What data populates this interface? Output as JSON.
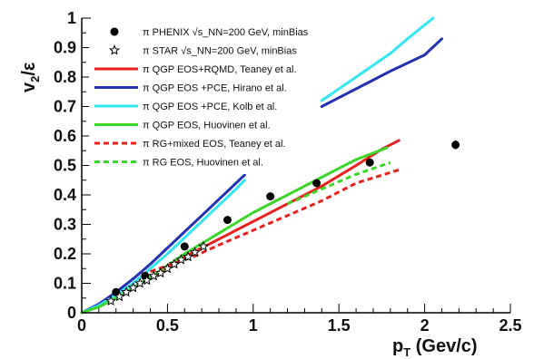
{
  "chart_data": {
    "type": "line",
    "xlabel_main": "p",
    "xlabel_sub": "T",
    "xlabel_rest": " (Gev/c)",
    "ylabel_main": "v",
    "ylabel_sub": "2",
    "ylabel_rest": "/ε",
    "xlim": [
      0,
      2.5
    ],
    "ylim": [
      0,
      1
    ],
    "xticks": [
      "0",
      "0.5",
      "1",
      "1.5",
      "2",
      "2.5"
    ],
    "yticks": [
      "0",
      "0.1",
      "0.2",
      "0.3",
      "0.4",
      "0.5",
      "0.6",
      "0.7",
      "0.8",
      "0.9",
      "1"
    ],
    "x_tick_values": [
      0,
      0.5,
      1,
      1.5,
      2,
      2.5
    ],
    "y_tick_values": [
      0,
      0.1,
      0.2,
      0.3,
      0.4,
      0.5,
      0.6,
      0.7,
      0.8,
      0.9,
      1
    ],
    "legend": [
      {
        "label": "π PHENIX √s_NN=200 GeV, minBias",
        "kind": "marker-circle",
        "color": "#000000"
      },
      {
        "label": "π STAR √s_NN=200 GeV, minBias",
        "kind": "marker-star",
        "color": "#000000"
      },
      {
        "label": "π  QGP EOS+RQMD, Teaney et al.",
        "kind": "line",
        "color": "#e8211e"
      },
      {
        "label": "π QGP EOS +PCE, Hirano et al.",
        "kind": "line",
        "color": "#2232b0"
      },
      {
        "label": "π QGP EOS +PCE, Kolb et al.",
        "kind": "line",
        "color": "#33e6f2"
      },
      {
        "label": "π QGP EOS, Huovinen et al.",
        "kind": "line",
        "color": "#3cd62a"
      },
      {
        "label": "π RG+mixed EOS, Teaney et al.",
        "kind": "dashed",
        "color": "#e8211e"
      },
      {
        "label": "π RG EOS, Huovinen et al.",
        "kind": "dashed",
        "color": "#3cd62a"
      }
    ],
    "series": [
      {
        "name": "π PHENIX √s_NN=200 GeV, minBias",
        "kind": "points-circle",
        "color": "#000000",
        "x": [
          0.2,
          0.37,
          0.6,
          0.85,
          1.1,
          1.37,
          1.68,
          2.18
        ],
        "y": [
          0.07,
          0.125,
          0.225,
          0.315,
          0.395,
          0.44,
          0.51,
          0.57
        ],
        "yerr": [
          0.005,
          0.005,
          0.005,
          0.006,
          0.007,
          0.008,
          0.01,
          0.015
        ]
      },
      {
        "name": "π STAR √s_NN=200 GeV, minBias",
        "kind": "points-star",
        "color": "#000000",
        "x": [
          0.17,
          0.22,
          0.26,
          0.3,
          0.34,
          0.38,
          0.42,
          0.46,
          0.5,
          0.54,
          0.58,
          0.62,
          0.66,
          0.71
        ],
        "y": [
          0.04,
          0.055,
          0.07,
          0.085,
          0.1,
          0.11,
          0.125,
          0.135,
          0.15,
          0.165,
          0.18,
          0.19,
          0.205,
          0.225
        ]
      },
      {
        "name": "π  QGP EOS+RQMD, Teaney et al.",
        "kind": "line",
        "color": "#e8211e",
        "x": [
          0,
          0.1,
          0.2,
          0.3,
          0.4,
          0.5,
          0.6,
          0.7,
          0.8,
          0.9,
          1.0,
          1.2,
          1.4,
          1.6,
          1.75,
          1.85
        ],
        "y": [
          0,
          0.02,
          0.05,
          0.085,
          0.12,
          0.155,
          0.19,
          0.22,
          0.25,
          0.28,
          0.31,
          0.37,
          0.43,
          0.5,
          0.555,
          0.585
        ]
      },
      {
        "name": "π QGP EOS +PCE, Hirano et al.",
        "kind": "line",
        "color": "#2232b0",
        "x": [
          0,
          0.1,
          0.2,
          0.3,
          0.4,
          0.5,
          0.6,
          0.7,
          0.8,
          0.9,
          0.95
        ],
        "y": [
          0,
          0.03,
          0.07,
          0.115,
          0.165,
          0.22,
          0.275,
          0.33,
          0.385,
          0.44,
          0.468
        ]
      },
      {
        "name": "π QGP EOS +PCE, Hirano et al. (high pT)",
        "kind": "line",
        "color": "#2232b0",
        "x": [
          1.4,
          1.6,
          1.8,
          2.0,
          2.1
        ],
        "y": [
          0.7,
          0.76,
          0.82,
          0.875,
          0.93
        ]
      },
      {
        "name": "π QGP EOS +PCE, Kolb et al.",
        "kind": "line",
        "color": "#33e6f2",
        "x": [
          0,
          0.1,
          0.2,
          0.3,
          0.4,
          0.5,
          0.6,
          0.7,
          0.8,
          0.9,
          0.95
        ],
        "y": [
          0,
          0.025,
          0.06,
          0.1,
          0.15,
          0.2,
          0.255,
          0.31,
          0.365,
          0.42,
          0.45
        ]
      },
      {
        "name": "π QGP EOS +PCE, Kolb et al. (high pT)",
        "kind": "line",
        "color": "#33e6f2",
        "x": [
          1.4,
          1.6,
          1.8,
          1.9,
          2.05
        ],
        "y": [
          0.72,
          0.8,
          0.88,
          0.93,
          1.0
        ]
      },
      {
        "name": "π QGP EOS, Huovinen et al.",
        "kind": "line",
        "color": "#3cd62a",
        "x": [
          0,
          0.1,
          0.2,
          0.3,
          0.4,
          0.5,
          0.6,
          0.7,
          0.8,
          0.9,
          1.0,
          1.2,
          1.4,
          1.6,
          1.78
        ],
        "y": [
          0,
          0.02,
          0.05,
          0.085,
          0.12,
          0.16,
          0.2,
          0.235,
          0.27,
          0.305,
          0.34,
          0.4,
          0.46,
          0.52,
          0.56
        ]
      },
      {
        "name": "π RG+mixed EOS, Teaney et al.",
        "kind": "dashed",
        "color": "#e8211e",
        "x": [
          0.35,
          0.45,
          0.55,
          0.65,
          0.8,
          1.0,
          1.2,
          1.4,
          1.6,
          1.85
        ],
        "y": [
          0.13,
          0.15,
          0.17,
          0.19,
          0.23,
          0.28,
          0.33,
          0.38,
          0.44,
          0.485
        ]
      },
      {
        "name": "π RG EOS, Huovinen et al.",
        "kind": "dashed",
        "color": "#3cd62a",
        "x": [
          1.2,
          1.4,
          1.6,
          1.8
        ],
        "y": [
          0.37,
          0.42,
          0.47,
          0.51
        ]
      }
    ]
  }
}
